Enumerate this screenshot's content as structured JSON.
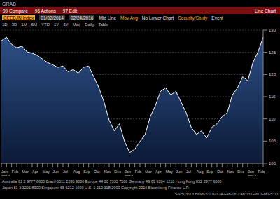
{
  "header": {
    "top_label": "GRAB",
    "menu": [
      "99 Compare",
      "96 Actions",
      "97 Edit"
    ],
    "menu_right": "Line Chart",
    "ticker": "CEEBJN Index",
    "start_date": "01/02/2014",
    "end_date": "02/24/2016",
    "options": [
      "Mid Line",
      "Mov Avg",
      "No Lower Chart",
      "Security/Study",
      "Event"
    ],
    "ranges": [
      "1D",
      "3D",
      "1M",
      "6M",
      "YTD",
      "1Y",
      "5Y",
      "Max",
      "Daily",
      "Table"
    ]
  },
  "chart_data": {
    "type": "area",
    "categories": [
      "Jan 2014",
      null,
      "Feb",
      null,
      "Mar",
      null,
      "Apr",
      null,
      "May",
      null,
      "Jun",
      null,
      "Jul",
      null,
      "Aug",
      null,
      "Sep",
      null,
      "Oct",
      null,
      "Nov",
      null,
      "Dec",
      null,
      "Jan 2015",
      null,
      "Feb",
      null,
      "Mar",
      null,
      "Apr",
      null,
      "May",
      null,
      "Jun",
      null,
      "Jul",
      null,
      "Aug",
      null,
      "Sep",
      null,
      "Oct",
      null,
      "Nov",
      null,
      "Dec",
      null,
      "Jan 2016",
      null,
      "Feb",
      null
    ],
    "series": [
      {
        "name": "CEEBJN Index",
        "color": "#ffffff",
        "values": [
          127.6,
          128.4,
          126.8,
          126.0,
          126.4,
          125.1,
          124.8,
          124.3,
          123.5,
          122.7,
          122.2,
          121.6,
          121.9,
          120.6,
          121.1,
          120.3,
          121.6,
          121.9,
          119.5,
          117.0,
          113.8,
          109.7,
          107.3,
          108.9,
          104.9,
          102.4,
          103.2,
          104.9,
          106.5,
          110.5,
          113.0,
          116.2,
          117.0,
          115.4,
          116.2,
          113.8,
          111.4,
          108.1,
          106.5,
          107.3,
          105.7,
          108.1,
          108.9,
          110.5,
          111.4,
          115.4,
          117.0,
          119.5,
          118.6,
          122.7,
          125.1,
          128.4
        ]
      }
    ],
    "ylim": [
      100,
      130
    ],
    "yticks": [
      100,
      105,
      110,
      115,
      120,
      125,
      130
    ],
    "grid": true
  },
  "footer": {
    "lines": [
      "Australia 61 2 9777 8600 Brazil 5511 2395 9000 Europe 44 20 7330 7500 Germany 49 69 9204 1210 Hong Kong 852 2977 6000",
      "Japan 81 3 3201 8900 Singapore 65 6212 1000 U.S. 1 212 318 2000 Copyright 2016 Bloomberg Finance L.P.",
      "SN 503113 H696-5310-0 24-Feb-16 7:46:03 GMT GMT-5:00"
    ]
  }
}
